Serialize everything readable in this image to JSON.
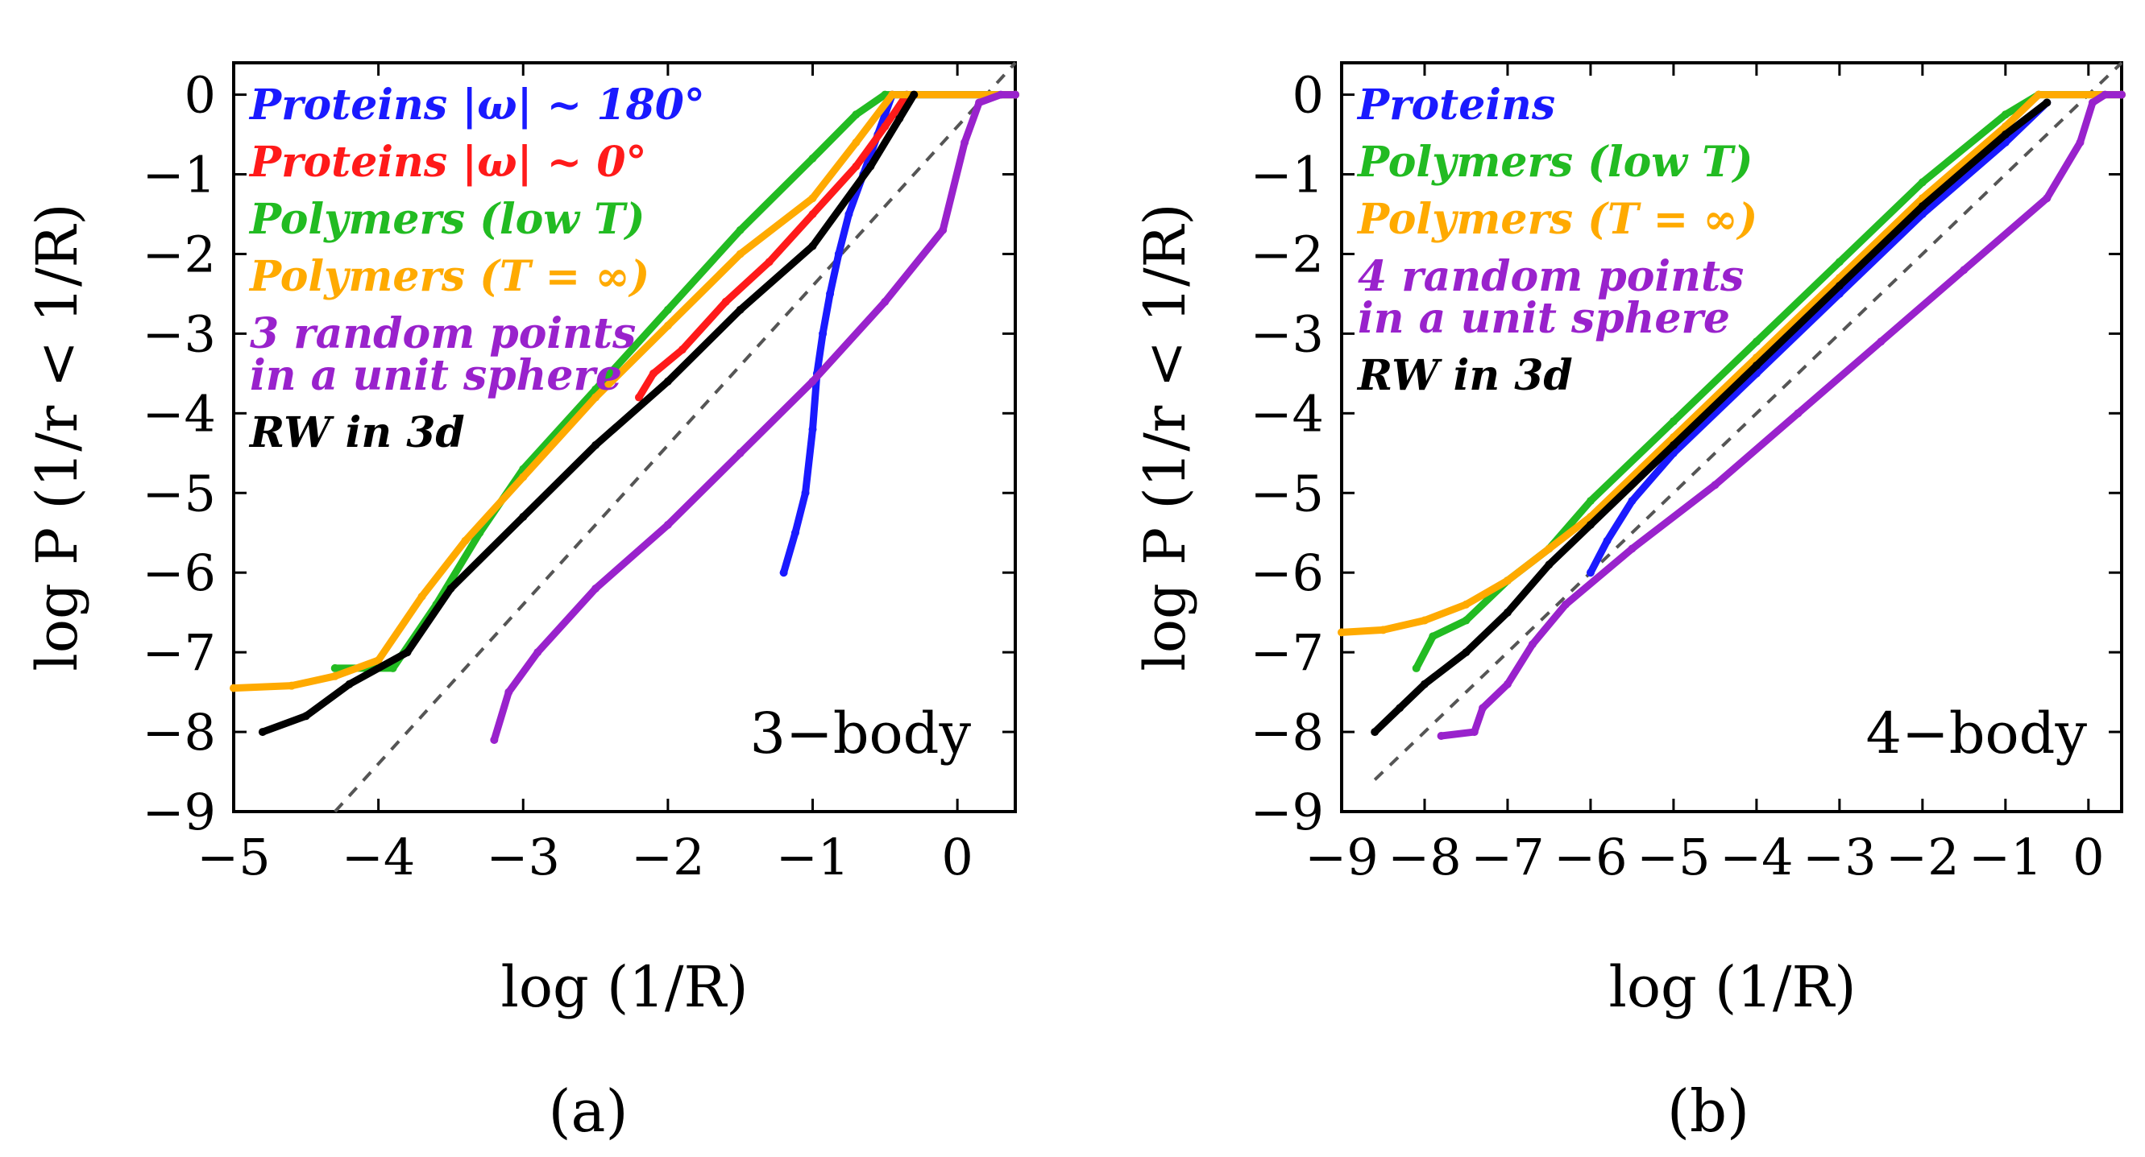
{
  "chart_data": [
    {
      "type": "scatter",
      "panel_label": "(a)",
      "annotation": "3−body",
      "xlabel": "log (1/R)",
      "ylabel": "log P (1/r < 1/R)",
      "xlim": [
        -5,
        0.4
      ],
      "ylim": [
        -9,
        0.4
      ],
      "xticks": [
        -5,
        -4,
        -3,
        -2,
        -1,
        0
      ],
      "xtick_labels": [
        "−5",
        "−4",
        "−3",
        "−2",
        "−1",
        "0"
      ],
      "yticks": [
        0,
        -1,
        -2,
        -3,
        -4,
        -5,
        -6,
        -7,
        -8,
        -9
      ],
      "ytick_labels": [
        "0",
        "−1",
        "−2",
        "−3",
        "−4",
        "−5",
        "−6",
        "−7",
        "−8",
        "−9"
      ],
      "legend_placement": "top-left",
      "reference_line": {
        "style": "dashed",
        "color": "#555555",
        "points": [
          [
            -4.3,
            -9
          ],
          [
            0.4,
            0.4
          ]
        ]
      },
      "series": [
        {
          "name": "Proteins |ω| ~ 180°",
          "color": "#1a1aff",
          "points": [
            [
              -1.2,
              -6
            ],
            [
              -1.12,
              -5.5
            ],
            [
              -1.05,
              -5.0
            ],
            [
              -1.0,
              -4.2
            ],
            [
              -0.97,
              -3.5
            ],
            [
              -0.93,
              -3.0
            ],
            [
              -0.88,
              -2.5
            ],
            [
              -0.82,
              -2.0
            ],
            [
              -0.75,
              -1.5
            ],
            [
              -0.65,
              -1.0
            ],
            [
              -0.55,
              -0.5
            ],
            [
              -0.45,
              0
            ],
            [
              0.4,
              0
            ]
          ]
        },
        {
          "name": "Proteins |ω| ~ 0°",
          "color": "#ff1a1a",
          "points": [
            [
              -2.2,
              -3.8
            ],
            [
              -2.1,
              -3.5
            ],
            [
              -1.9,
              -3.2
            ],
            [
              -1.6,
              -2.6
            ],
            [
              -1.3,
              -2.1
            ],
            [
              -1.0,
              -1.5
            ],
            [
              -0.7,
              -0.9
            ],
            [
              -0.5,
              -0.4
            ],
            [
              -0.35,
              0
            ]
          ]
        },
        {
          "name": "Polymers (low T)",
          "color": "#22bb22",
          "points": [
            [
              -4.3,
              -7.2
            ],
            [
              -3.9,
              -7.2
            ],
            [
              -3.6,
              -6.4
            ],
            [
              -3.3,
              -5.5
            ],
            [
              -3.0,
              -4.7
            ],
            [
              -2.5,
              -3.7
            ],
            [
              -2.0,
              -2.7
            ],
            [
              -1.5,
              -1.7
            ],
            [
              -1.0,
              -0.8
            ],
            [
              -0.7,
              -0.25
            ],
            [
              -0.5,
              0
            ],
            [
              0.4,
              0
            ]
          ]
        },
        {
          "name": "Polymers (T = ∞)",
          "color": "#ffaa00",
          "points": [
            [
              -5,
              -7.45
            ],
            [
              -4.6,
              -7.42
            ],
            [
              -4.3,
              -7.3
            ],
            [
              -4.0,
              -7.1
            ],
            [
              -3.7,
              -6.3
            ],
            [
              -3.4,
              -5.6
            ],
            [
              -3.0,
              -4.8
            ],
            [
              -2.5,
              -3.8
            ],
            [
              -2.0,
              -2.9
            ],
            [
              -1.5,
              -2.0
            ],
            [
              -1.0,
              -1.3
            ],
            [
              -0.7,
              -0.6
            ],
            [
              -0.45,
              0
            ],
            [
              0.4,
              0
            ]
          ]
        },
        {
          "name": "3 random points in a unit sphere",
          "color": "#9922cc",
          "points": [
            [
              -3.2,
              -8.1
            ],
            [
              -3.1,
              -7.5
            ],
            [
              -2.9,
              -7.0
            ],
            [
              -2.5,
              -6.2
            ],
            [
              -2.0,
              -5.4
            ],
            [
              -1.5,
              -4.5
            ],
            [
              -1.0,
              -3.6
            ],
            [
              -0.5,
              -2.6
            ],
            [
              -0.1,
              -1.7
            ],
            [
              0.05,
              -0.6
            ],
            [
              0.15,
              -0.1
            ],
            [
              0.3,
              0
            ],
            [
              0.4,
              0
            ]
          ]
        },
        {
          "name": "RW in 3d",
          "color": "#000000",
          "points": [
            [
              -4.8,
              -8
            ],
            [
              -4.5,
              -7.8
            ],
            [
              -4.2,
              -7.4
            ],
            [
              -3.8,
              -7.0
            ],
            [
              -3.5,
              -6.2
            ],
            [
              -3.0,
              -5.3
            ],
            [
              -2.5,
              -4.4
            ],
            [
              -2.0,
              -3.6
            ],
            [
              -1.5,
              -2.7
            ],
            [
              -1.0,
              -1.9
            ],
            [
              -0.6,
              -0.9
            ],
            [
              -0.4,
              -0.3
            ],
            [
              -0.3,
              0
            ]
          ]
        }
      ]
    },
    {
      "type": "scatter",
      "panel_label": "(b)",
      "annotation": "4−body",
      "xlabel": "log (1/R)",
      "ylabel": "log P (1/r < 1/R)",
      "xlim": [
        -9,
        0.4
      ],
      "ylim": [
        -9,
        0.4
      ],
      "xticks": [
        -9,
        -8,
        -7,
        -6,
        -5,
        -4,
        -3,
        -2,
        -1,
        0
      ],
      "xtick_labels": [
        "−9",
        "−8",
        "−7",
        "−6",
        "−5",
        "−4",
        "−3",
        "−2",
        "−1",
        "0"
      ],
      "yticks": [
        0,
        -1,
        -2,
        -3,
        -4,
        -5,
        -6,
        -7,
        -8,
        -9
      ],
      "ytick_labels": [
        "0",
        "−1",
        "−2",
        "−3",
        "−4",
        "−5",
        "−6",
        "−7",
        "−8",
        "−9"
      ],
      "legend_placement": "top-left",
      "reference_line": {
        "style": "dashed",
        "color": "#555555",
        "points": [
          [
            -8.6,
            -8.6
          ],
          [
            0.4,
            0.4
          ]
        ]
      },
      "series": [
        {
          "name": "Proteins",
          "color": "#1a1aff",
          "points": [
            [
              -6,
              -6
            ],
            [
              -5.8,
              -5.6
            ],
            [
              -5.5,
              -5.1
            ],
            [
              -5,
              -4.5
            ],
            [
              -4,
              -3.5
            ],
            [
              -3,
              -2.5
            ],
            [
              -2,
              -1.5
            ],
            [
              -1,
              -0.6
            ],
            [
              -0.5,
              -0.1
            ]
          ]
        },
        {
          "name": "Polymers (low T)",
          "color": "#22bb22",
          "points": [
            [
              -8.1,
              -7.2
            ],
            [
              -7.9,
              -6.8
            ],
            [
              -7.5,
              -6.6
            ],
            [
              -7,
              -6.1
            ],
            [
              -6.5,
              -5.7
            ],
            [
              -6,
              -5.1
            ],
            [
              -5,
              -4.1
            ],
            [
              -4,
              -3.1
            ],
            [
              -3,
              -2.1
            ],
            [
              -2,
              -1.1
            ],
            [
              -1,
              -0.25
            ],
            [
              -0.6,
              0
            ],
            [
              0.4,
              0
            ]
          ]
        },
        {
          "name": "Polymers (T = ∞)",
          "color": "#ffaa00",
          "points": [
            [
              -9,
              -6.75
            ],
            [
              -8.5,
              -6.72
            ],
            [
              -8,
              -6.6
            ],
            [
              -7.5,
              -6.4
            ],
            [
              -7,
              -6.1
            ],
            [
              -6.5,
              -5.7
            ],
            [
              -6,
              -5.3
            ],
            [
              -5,
              -4.3
            ],
            [
              -4,
              -3.3
            ],
            [
              -3,
              -2.3
            ],
            [
              -2,
              -1.3
            ],
            [
              -1,
              -0.4
            ],
            [
              -0.6,
              0
            ],
            [
              0.4,
              0
            ]
          ]
        },
        {
          "name": "4 random points in a unit sphere",
          "color": "#9922cc",
          "points": [
            [
              -7.8,
              -8.05
            ],
            [
              -7.4,
              -8.0
            ],
            [
              -7.3,
              -7.7
            ],
            [
              -7.0,
              -7.4
            ],
            [
              -6.7,
              -6.9
            ],
            [
              -6.3,
              -6.4
            ],
            [
              -5.5,
              -5.7
            ],
            [
              -4.5,
              -4.9
            ],
            [
              -3.5,
              -4.0
            ],
            [
              -2.5,
              -3.1
            ],
            [
              -1.5,
              -2.2
            ],
            [
              -0.5,
              -1.3
            ],
            [
              -0.1,
              -0.6
            ],
            [
              0.05,
              -0.1
            ],
            [
              0.2,
              0
            ],
            [
              0.4,
              0
            ]
          ]
        },
        {
          "name": "RW in 3d",
          "color": "#000000",
          "points": [
            [
              -8.6,
              -8
            ],
            [
              -8.3,
              -7.7
            ],
            [
              -8,
              -7.4
            ],
            [
              -7.5,
              -7.0
            ],
            [
              -7,
              -6.5
            ],
            [
              -6.5,
              -5.9
            ],
            [
              -6,
              -5.4
            ],
            [
              -5,
              -4.4
            ],
            [
              -4,
              -3.4
            ],
            [
              -3,
              -2.4
            ],
            [
              -2,
              -1.4
            ],
            [
              -1,
              -0.5
            ],
            [
              -0.5,
              -0.1
            ]
          ]
        }
      ]
    }
  ]
}
